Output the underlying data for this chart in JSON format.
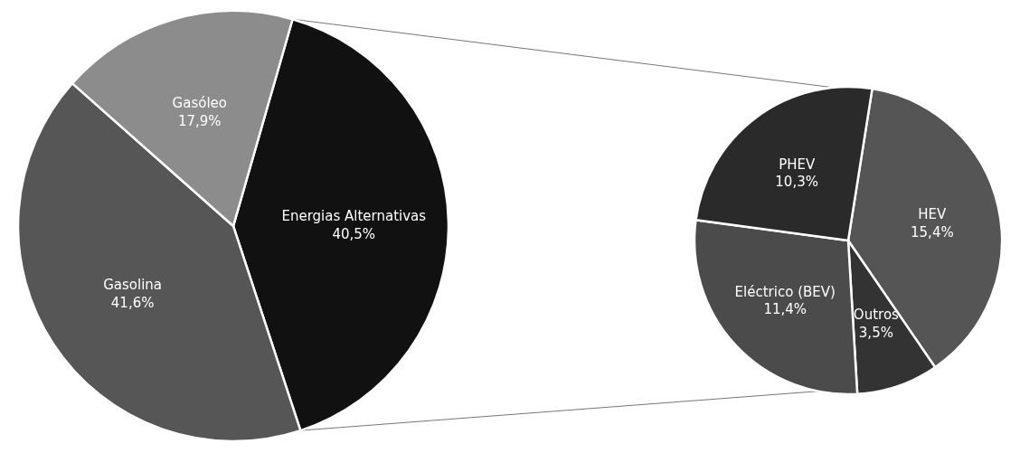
{
  "chart_data": [
    {
      "type": "pie",
      "categories": [
        "Energias Alternativas",
        "Gasolina",
        "Gasóleo"
      ],
      "values": [
        40.5,
        41.6,
        17.9
      ],
      "value_labels": [
        "40,5%",
        "41,6%",
        "17,9%"
      ],
      "colors": [
        "#111111",
        "#565656",
        "#8c8c8c"
      ]
    },
    {
      "type": "pie",
      "categories": [
        "HEV",
        "Outros",
        "Eléctrico (BEV)",
        "PHEV"
      ],
      "values": [
        15.4,
        3.5,
        11.4,
        10.3
      ],
      "value_labels": [
        "15,4%",
        "3,5%",
        "11,4%",
        "10,3%"
      ],
      "colors": [
        "#555555",
        "#333333",
        "#4b4b4b",
        "#2a2a2a"
      ]
    }
  ]
}
